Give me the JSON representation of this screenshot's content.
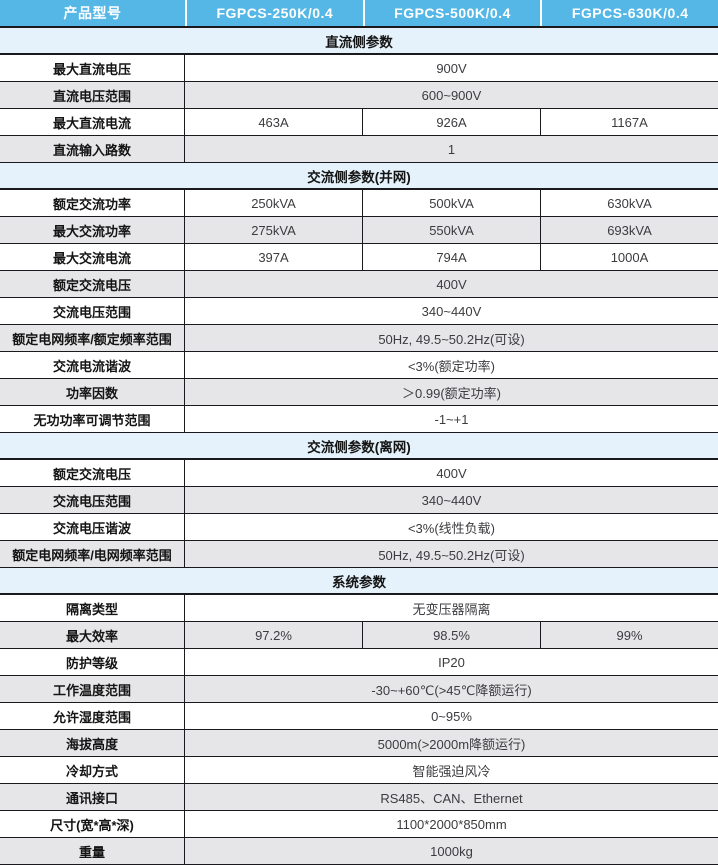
{
  "colors": {
    "header_bg": "#54b7e6",
    "header_text": "#ffffff",
    "section_bg": "#e5f2fb",
    "row_alt_bg": "#e6e6e8",
    "border_dark": "#1a1a1e",
    "label_text": "#141414",
    "value_text": "#3c3c40"
  },
  "table": {
    "header": {
      "col0": "产品型号",
      "cols": [
        "FGPCS-250K/0.4",
        "FGPCS-500K/0.4",
        "FGPCS-630K/0.4"
      ]
    },
    "rows": [
      {
        "type": "section",
        "title": "直流侧参数"
      },
      {
        "type": "row",
        "label": "最大直流电压",
        "value": "900V"
      },
      {
        "type": "row",
        "label": "直流电压范围",
        "value": "600~900V"
      },
      {
        "type": "row",
        "label": "最大直流电流",
        "values": [
          "463A",
          "926A",
          "1167A"
        ]
      },
      {
        "type": "row",
        "label": "直流输入路数",
        "value": "1"
      },
      {
        "type": "section",
        "title": "交流侧参数(并网)"
      },
      {
        "type": "row",
        "label": "额定交流功率",
        "values": [
          "250kVA",
          "500kVA",
          "630kVA"
        ]
      },
      {
        "type": "row",
        "label": "最大交流功率",
        "values": [
          "275kVA",
          "550kVA",
          "693kVA"
        ]
      },
      {
        "type": "row",
        "label": "最大交流电流",
        "values": [
          "397A",
          "794A",
          "1000A"
        ]
      },
      {
        "type": "row",
        "label": "额定交流电压",
        "value": "400V"
      },
      {
        "type": "row",
        "label": "交流电压范围",
        "value": "340~440V"
      },
      {
        "type": "row",
        "label": "额定电网频率/额定频率范围",
        "value": "50Hz, 49.5~50.2Hz(可设)"
      },
      {
        "type": "row",
        "label": "交流电流谐波",
        "value": "<3%(额定功率)"
      },
      {
        "type": "row",
        "label": "功率因数",
        "value": "＞0.99(额定功率)"
      },
      {
        "type": "row",
        "label": "无功功率可调节范围",
        "value": "-1~+1"
      },
      {
        "type": "section",
        "title": "交流侧参数(离网)"
      },
      {
        "type": "row",
        "label": "额定交流电压",
        "value": "400V"
      },
      {
        "type": "row",
        "label": "交流电压范围",
        "value": "340~440V"
      },
      {
        "type": "row",
        "label": "交流电压谐波",
        "value": "<3%(线性负载)"
      },
      {
        "type": "row",
        "label": "额定电网频率/电网频率范围",
        "value": "50Hz, 49.5~50.2Hz(可设)"
      },
      {
        "type": "section",
        "title": "系统参数"
      },
      {
        "type": "row",
        "label": "隔离类型",
        "value": "无变压器隔离"
      },
      {
        "type": "row",
        "label": "最大效率",
        "values": [
          "97.2%",
          "98.5%",
          "99%"
        ]
      },
      {
        "type": "row",
        "label": "防护等级",
        "value": "IP20"
      },
      {
        "type": "row",
        "label": "工作温度范围",
        "value": "-30~+60℃(>45℃降额运行)"
      },
      {
        "type": "row",
        "label": "允许湿度范围",
        "value": "0~95%"
      },
      {
        "type": "row",
        "label": "海拔高度",
        "value": "5000m(>2000m降额运行)"
      },
      {
        "type": "row",
        "label": "冷却方式",
        "value": "智能强迫风冷"
      },
      {
        "type": "row",
        "label": "通讯接口",
        "value": "RS485、CAN、Ethernet"
      },
      {
        "type": "row",
        "label": "尺寸(宽*高*深)",
        "value": "1100*2000*850mm"
      },
      {
        "type": "row",
        "label": "重量",
        "value": "1000kg"
      }
    ]
  }
}
